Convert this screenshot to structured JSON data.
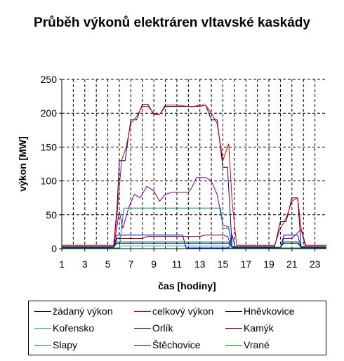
{
  "chart_data": {
    "type": "line",
    "title": "Průběh výkonů elektráren vltavské kaskády",
    "xlabel": "čas [hodiny]",
    "ylabel": "výkon [MW]",
    "xlim": [
      1,
      24
    ],
    "ylim": [
      0,
      250
    ],
    "xticks": [
      1,
      3,
      5,
      7,
      9,
      11,
      13,
      15,
      17,
      19,
      21,
      23
    ],
    "yticks": [
      0,
      50,
      100,
      150,
      200,
      250
    ],
    "grid": "vertical and horizontal dashed",
    "legend_position": "bottom",
    "series": [
      {
        "name": "žádaný výkon",
        "color": "#000080",
        "points": [
          [
            1,
            3
          ],
          [
            5.5,
            3
          ],
          [
            5.8,
            60
          ],
          [
            6,
            130
          ],
          [
            6.5,
            130
          ],
          [
            7,
            190
          ],
          [
            7.5,
            190
          ],
          [
            8,
            213
          ],
          [
            8.5,
            213
          ],
          [
            9,
            198
          ],
          [
            9.5,
            198
          ],
          [
            10,
            210
          ],
          [
            12.5,
            210
          ],
          [
            13,
            212
          ],
          [
            13.5,
            212
          ],
          [
            14,
            190
          ],
          [
            14.5,
            190
          ],
          [
            15,
            120
          ],
          [
            15.4,
            120
          ],
          [
            15.8,
            3
          ],
          [
            19.5,
            3
          ],
          [
            20,
            40
          ],
          [
            20.5,
            40
          ],
          [
            21,
            75
          ],
          [
            21.5,
            75
          ],
          [
            21.8,
            3
          ],
          [
            24,
            3
          ]
        ]
      },
      {
        "name": "celkový výkon",
        "color": "#cc0000",
        "points": [
          [
            1,
            5
          ],
          [
            5.5,
            5
          ],
          [
            5.8,
            50
          ],
          [
            6.2,
            130
          ],
          [
            6.6,
            150
          ],
          [
            7,
            185
          ],
          [
            7.5,
            195
          ],
          [
            8,
            210
          ],
          [
            8.5,
            210
          ],
          [
            9,
            200
          ],
          [
            9.5,
            198
          ],
          [
            10,
            212
          ],
          [
            11,
            212
          ],
          [
            12,
            210
          ],
          [
            13,
            210
          ],
          [
            13.5,
            212
          ],
          [
            14,
            200
          ],
          [
            14.5,
            185
          ],
          [
            15,
            130
          ],
          [
            15.5,
            155
          ],
          [
            15.8,
            70
          ],
          [
            16.2,
            5
          ],
          [
            19.5,
            5
          ],
          [
            20,
            30
          ],
          [
            20.5,
            45
          ],
          [
            21,
            70
          ],
          [
            21.5,
            75
          ],
          [
            21.8,
            30
          ],
          [
            22.2,
            5
          ],
          [
            24,
            5
          ]
        ]
      },
      {
        "name": "Hněvkovice",
        "color": "#000080",
        "points": [
          [
            1,
            2
          ],
          [
            5.5,
            2
          ],
          [
            5.8,
            8
          ],
          [
            15.5,
            8
          ],
          [
            15.8,
            2
          ],
          [
            20,
            2
          ],
          [
            20.3,
            8
          ],
          [
            21.5,
            8
          ],
          [
            21.8,
            2
          ],
          [
            24,
            2
          ]
        ]
      },
      {
        "name": "Kořensko",
        "color": "#00cccc",
        "points": [
          [
            1,
            1
          ],
          [
            6,
            1
          ],
          [
            6.2,
            4
          ],
          [
            15.3,
            4
          ],
          [
            15.5,
            1
          ],
          [
            24,
            1
          ]
        ]
      },
      {
        "name": "Orlík",
        "color": "#800080",
        "points": [
          [
            1,
            1
          ],
          [
            5.5,
            1
          ],
          [
            6,
            55
          ],
          [
            6.3,
            30
          ],
          [
            6.8,
            60
          ],
          [
            7.3,
            80
          ],
          [
            7.8,
            75
          ],
          [
            8.4,
            92
          ],
          [
            9,
            85
          ],
          [
            9.5,
            70
          ],
          [
            10,
            80
          ],
          [
            10.5,
            83
          ],
          [
            12,
            83
          ],
          [
            12.3,
            90
          ],
          [
            12.7,
            105
          ],
          [
            13.5,
            105
          ],
          [
            14,
            100
          ],
          [
            14.5,
            80
          ],
          [
            15,
            35
          ],
          [
            15.5,
            32
          ],
          [
            15.8,
            1
          ],
          [
            20,
            1
          ],
          [
            20.3,
            15
          ],
          [
            21,
            15
          ],
          [
            21.4,
            22
          ],
          [
            21.8,
            28
          ],
          [
            22.2,
            1
          ],
          [
            24,
            1
          ]
        ]
      },
      {
        "name": "Kamýk",
        "color": "#800000",
        "points": [
          [
            1,
            1
          ],
          [
            5.5,
            1
          ],
          [
            5.8,
            15
          ],
          [
            8,
            15
          ],
          [
            8.5,
            18
          ],
          [
            13,
            18
          ],
          [
            13.5,
            20
          ],
          [
            15,
            20
          ],
          [
            15.4,
            18
          ],
          [
            15.8,
            1
          ],
          [
            20,
            1
          ],
          [
            20.3,
            10
          ],
          [
            21.5,
            10
          ],
          [
            21.8,
            1
          ],
          [
            24,
            1
          ]
        ]
      },
      {
        "name": "Slapy",
        "color": "#008080",
        "points": [
          [
            1,
            1
          ],
          [
            6,
            1
          ],
          [
            6.4,
            60
          ],
          [
            14.8,
            60
          ],
          [
            15,
            30
          ],
          [
            15.5,
            30
          ],
          [
            15.8,
            1
          ],
          [
            24,
            1
          ]
        ]
      },
      {
        "name": "Štěchovice",
        "color": "#0000cc",
        "points": [
          [
            1,
            1
          ],
          [
            5.5,
            1
          ],
          [
            5.8,
            20
          ],
          [
            11.5,
            20
          ],
          [
            11.8,
            1
          ],
          [
            15.5,
            1
          ],
          [
            15.8,
            20
          ],
          [
            16.1,
            1
          ],
          [
            20,
            1
          ],
          [
            20.3,
            20
          ],
          [
            21.5,
            20
          ],
          [
            21.8,
            1
          ],
          [
            24,
            1
          ]
        ]
      },
      {
        "name": "Vrané",
        "color": "#008000",
        "points": [
          [
            1,
            1
          ],
          [
            5.5,
            1
          ],
          [
            5.8,
            10
          ],
          [
            15.5,
            10
          ],
          [
            15.8,
            1
          ],
          [
            20,
            1
          ],
          [
            20.3,
            10
          ],
          [
            21.5,
            10
          ],
          [
            21.8,
            1
          ],
          [
            24,
            1
          ]
        ]
      }
    ]
  }
}
